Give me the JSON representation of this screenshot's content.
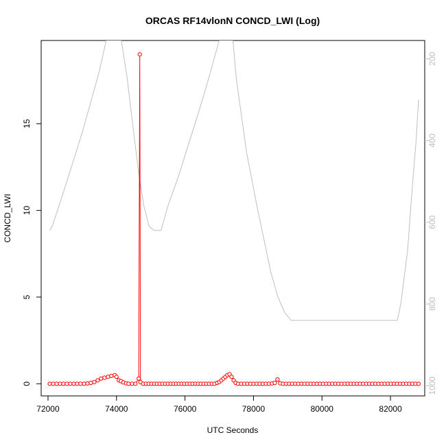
{
  "chart_data": {
    "type": "line",
    "title": "ORCAS RF14vlonN CONCD_LWI (Log)",
    "xlabel": "UTC Seconds",
    "ylabel": "CONCD_LWI",
    "xlim": [
      71800,
      83000
    ],
    "ylim": [
      -0.7,
      19.8
    ],
    "x_ticks": [
      "72000",
      "74000",
      "76000",
      "78000",
      "80000",
      "82000"
    ],
    "y_ticks": [
      "0",
      "5",
      "10",
      "15"
    ],
    "y2_ticks": [
      "200",
      "400",
      "600",
      "800",
      "1000"
    ],
    "y2lim_reversed": [
      1025,
      155
    ],
    "colors": {
      "primary": "#ff0000",
      "secondary": "#bebebe"
    },
    "series": [
      {
        "axis": "left",
        "style": "line+points",
        "points": [
          [
            72050,
            0
          ],
          [
            72150,
            0
          ],
          [
            72250,
            0
          ],
          [
            72350,
            0
          ],
          [
            72450,
            0
          ],
          [
            72550,
            0
          ],
          [
            72650,
            0
          ],
          [
            72750,
            0
          ],
          [
            72850,
            0
          ],
          [
            72950,
            0
          ],
          [
            73050,
            0
          ],
          [
            73150,
            0.02
          ],
          [
            73250,
            0.05
          ],
          [
            73350,
            0.1
          ],
          [
            73450,
            0.2
          ],
          [
            73550,
            0.3
          ],
          [
            73650,
            0.35
          ],
          [
            73750,
            0.4
          ],
          [
            73850,
            0.45
          ],
          [
            73950,
            0.5
          ],
          [
            74000,
            0.4
          ],
          [
            74070,
            0.2
          ],
          [
            74130,
            0.15
          ],
          [
            74200,
            0.08
          ],
          [
            74280,
            0.03
          ],
          [
            74350,
            0
          ],
          [
            74450,
            0
          ],
          [
            74550,
            0
          ],
          [
            74650,
            0.3
          ],
          [
            74680,
            19.0
          ],
          [
            74700,
            0.1
          ],
          [
            74780,
            0
          ],
          [
            74860,
            0
          ],
          [
            74940,
            0
          ],
          [
            75020,
            0
          ],
          [
            75100,
            0
          ],
          [
            75180,
            0
          ],
          [
            75260,
            0
          ],
          [
            75340,
            0
          ],
          [
            75420,
            0
          ],
          [
            75500,
            0
          ],
          [
            75580,
            0
          ],
          [
            75660,
            0
          ],
          [
            75740,
            0
          ],
          [
            75820,
            0
          ],
          [
            75900,
            0
          ],
          [
            75980,
            0
          ],
          [
            76060,
            0
          ],
          [
            76140,
            0
          ],
          [
            76220,
            0
          ],
          [
            76300,
            0
          ],
          [
            76380,
            0
          ],
          [
            76460,
            0
          ],
          [
            76540,
            0
          ],
          [
            76620,
            0
          ],
          [
            76700,
            0
          ],
          [
            76780,
            0
          ],
          [
            76860,
            0
          ],
          [
            76940,
            0.05
          ],
          [
            77000,
            0.1
          ],
          [
            77060,
            0.2
          ],
          [
            77120,
            0.3
          ],
          [
            77180,
            0.4
          ],
          [
            77240,
            0.5
          ],
          [
            77300,
            0.55
          ],
          [
            77360,
            0.4
          ],
          [
            77420,
            0.2
          ],
          [
            77480,
            0.05
          ],
          [
            77550,
            0
          ],
          [
            77640,
            0
          ],
          [
            77730,
            0
          ],
          [
            77820,
            0
          ],
          [
            77910,
            0
          ],
          [
            78000,
            0
          ],
          [
            78090,
            0
          ],
          [
            78180,
            0
          ],
          [
            78270,
            0
          ],
          [
            78360,
            0
          ],
          [
            78450,
            0
          ],
          [
            78540,
            0.02
          ],
          [
            78620,
            0.05
          ],
          [
            78700,
            0.25
          ],
          [
            78780,
            0.03
          ],
          [
            78860,
            0
          ],
          [
            78950,
            0
          ],
          [
            79040,
            0
          ],
          [
            79130,
            0
          ],
          [
            79220,
            0
          ],
          [
            79310,
            0
          ],
          [
            79400,
            0
          ],
          [
            79490,
            0
          ],
          [
            79580,
            0
          ],
          [
            79670,
            0
          ],
          [
            79760,
            0
          ],
          [
            79850,
            0
          ],
          [
            79940,
            0
          ],
          [
            80030,
            0
          ],
          [
            80120,
            0
          ],
          [
            80210,
            0
          ],
          [
            80300,
            0
          ],
          [
            80390,
            0
          ],
          [
            80480,
            0
          ],
          [
            80570,
            0
          ],
          [
            80660,
            0
          ],
          [
            80750,
            0
          ],
          [
            80840,
            0
          ],
          [
            80930,
            0
          ],
          [
            81020,
            0
          ],
          [
            81110,
            0
          ],
          [
            81200,
            0
          ],
          [
            81290,
            0
          ],
          [
            81380,
            0
          ],
          [
            81470,
            0
          ],
          [
            81560,
            0
          ],
          [
            81650,
            0
          ],
          [
            81740,
            0
          ],
          [
            81830,
            0
          ],
          [
            81920,
            0
          ],
          [
            82010,
            0
          ],
          [
            82100,
            0
          ],
          [
            82190,
            0
          ],
          [
            82280,
            0
          ],
          [
            82370,
            0
          ],
          [
            82460,
            0
          ],
          [
            82550,
            0
          ],
          [
            82640,
            0
          ],
          [
            82730,
            0
          ],
          [
            82820,
            0
          ]
        ]
      },
      {
        "axis": "right",
        "style": "line",
        "points": [
          [
            72050,
            620
          ],
          [
            72120,
            610
          ],
          [
            72200,
            590
          ],
          [
            72400,
            540
          ],
          [
            72700,
            460
          ],
          [
            73000,
            380
          ],
          [
            73300,
            290
          ],
          [
            73500,
            230
          ],
          [
            73700,
            155
          ],
          [
            74140,
            155
          ],
          [
            74300,
            240
          ],
          [
            74500,
            380
          ],
          [
            74650,
            480
          ],
          [
            74800,
            560
          ],
          [
            74950,
            610
          ],
          [
            75100,
            620
          ],
          [
            75300,
            620
          ],
          [
            75500,
            560
          ],
          [
            75800,
            490
          ],
          [
            76100,
            410
          ],
          [
            76400,
            330
          ],
          [
            76700,
            245
          ],
          [
            76900,
            185
          ],
          [
            77000,
            155
          ],
          [
            77400,
            155
          ],
          [
            77500,
            250
          ],
          [
            77800,
            430
          ],
          [
            78100,
            560
          ],
          [
            78500,
            720
          ],
          [
            78700,
            780
          ],
          [
            78900,
            820
          ],
          [
            79100,
            840
          ],
          [
            80000,
            840
          ],
          [
            81000,
            840
          ],
          [
            82000,
            840
          ],
          [
            82200,
            840
          ],
          [
            82300,
            800
          ],
          [
            82500,
            670
          ],
          [
            82650,
            500
          ],
          [
            82750,
            400
          ],
          [
            82820,
            300
          ]
        ]
      }
    ],
    "grid": false,
    "legend": "none"
  }
}
